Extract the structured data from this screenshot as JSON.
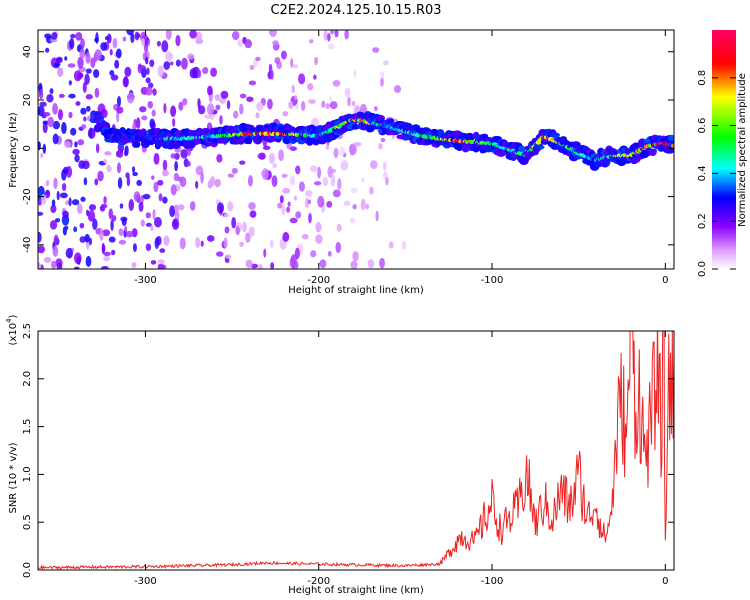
{
  "title": "C2E2.2024.125.10.15.R03",
  "chart_data": [
    {
      "type": "heatmap",
      "panel": "spectrogram",
      "xlabel": "Height of straight line (km)",
      "ylabel": "Frequency (Hz)",
      "xlim": [
        -362,
        5
      ],
      "ylim": [
        -50,
        49
      ],
      "x_ticks": [
        -300,
        -200,
        -100,
        0
      ],
      "y_ticks": [
        -40,
        -20,
        0,
        20,
        40
      ],
      "grid": false,
      "colorbar": {
        "label": "Normalized spectral amplitude",
        "range": [
          0.0,
          1.0
        ],
        "ticks": [
          0.0,
          0.2,
          0.4,
          0.6,
          0.8
        ],
        "colors": [
          "#ffffff",
          "#8800ff",
          "#0000ff",
          "#00ffff",
          "#00ff00",
          "#ffff00",
          "#ff0000",
          "#ff0066"
        ]
      },
      "ridge": {
        "x": [
          -330,
          -320,
          -300,
          -280,
          -260,
          -240,
          -220,
          -200,
          -180,
          -160,
          -140,
          -120,
          -100,
          -80,
          -70,
          -60,
          -50,
          -40,
          -30,
          -20,
          -10,
          0,
          5
        ],
        "frequency": [
          13,
          5,
          4,
          4,
          5,
          6,
          6,
          5,
          12,
          9,
          5,
          3,
          2,
          -3,
          5,
          2,
          -2,
          -5,
          -3,
          -3,
          1,
          2,
          1
        ],
        "peak_amplitude": [
          0.25,
          0.3,
          0.35,
          0.5,
          0.45,
          0.9,
          0.95,
          0.4,
          0.9,
          0.45,
          0.55,
          0.9,
          0.5,
          0.6,
          0.85,
          0.7,
          0.5,
          0.4,
          0.6,
          0.85,
          0.75,
          0.95,
          0.9
        ]
      },
      "background_noise": {
        "x_range": [
          -362,
          -150
        ],
        "amplitude": 0.15
      }
    },
    {
      "type": "line",
      "panel": "snr",
      "xlabel": "Height of straight line (km)",
      "ylabel": "SNR (10 * v/v)",
      "y_multiplier": "(x10",
      "y_multiplier_exp": "4",
      "xlim": [
        -362,
        5
      ],
      "ylim": [
        0,
        2.5
      ],
      "x_ticks": [
        -300,
        -200,
        -100,
        0
      ],
      "y_ticks": [
        0.0,
        0.5,
        1.0,
        1.5,
        2.0,
        2.5
      ],
      "grid": false,
      "series": [
        {
          "color": "#ee2222",
          "x": [
            -362,
            -300,
            -250,
            -230,
            -210,
            -180,
            -150,
            -130,
            -125,
            -118,
            -110,
            -100,
            -95,
            -85,
            -80,
            -75,
            -70,
            -65,
            -60,
            -55,
            -50,
            -45,
            -40,
            -36,
            -33,
            -30,
            -28,
            -25,
            -22,
            -20,
            -17,
            -15,
            -12,
            -8,
            -5,
            -2,
            -1,
            0,
            2,
            5
          ],
          "y": [
            0.01,
            0.02,
            0.04,
            0.06,
            0.05,
            0.04,
            0.03,
            0.05,
            0.15,
            0.3,
            0.25,
            0.6,
            0.35,
            0.55,
            0.85,
            0.4,
            0.6,
            0.45,
            0.7,
            0.55,
            0.85,
            0.45,
            0.6,
            0.3,
            0.35,
            0.7,
            1.2,
            1.5,
            1.1,
            2.4,
            1.4,
            1.6,
            1.0,
            1.3,
            1.8,
            1.2,
            2.5,
            0.2,
            1.8,
            1.5
          ]
        }
      ]
    }
  ]
}
